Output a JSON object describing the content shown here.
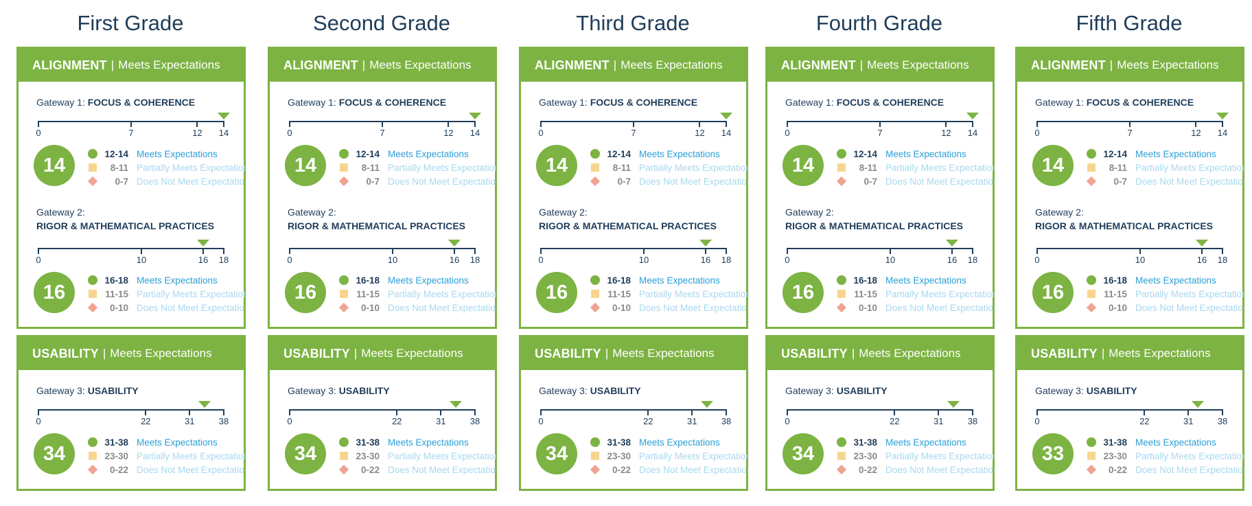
{
  "colors": {
    "accent": "#7cb342",
    "navy": "#1f3d5a",
    "meets_text": "#2a9fd6",
    "faded_text": "#a8d8ef",
    "partial_swatch": "#f7d58f",
    "notmeet_swatch": "#f0a392"
  },
  "legend_labels": {
    "meets": "Meets Expectations",
    "partial": "Partially Meets Expectations",
    "notmeet": "Does Not Meet Expectations"
  },
  "grades": [
    {
      "title": "First Grade",
      "alignment": {
        "title": "ALIGNMENT",
        "sep": "|",
        "rating": "Meets Expectations"
      },
      "gateway1": {
        "prefix": "Gateway 1:",
        "name": "FOCUS & COHERENCE",
        "max": 14,
        "ticks": [
          0,
          7,
          12,
          14
        ],
        "score": 14,
        "ranges": [
          "12-14",
          "8-11",
          "0-7"
        ]
      },
      "gateway2": {
        "prefix": "Gateway 2:",
        "name": "RIGOR & MATHEMATICAL PRACTICES",
        "max": 18,
        "ticks": [
          0,
          10,
          16,
          18
        ],
        "score": 16,
        "ranges": [
          "16-18",
          "11-15",
          "0-10"
        ]
      },
      "usability": {
        "title": "USABILITY",
        "sep": "|",
        "rating": "Meets Expectations"
      },
      "gateway3": {
        "prefix": "Gateway 3:",
        "name": "USABILITY",
        "max": 38,
        "ticks": [
          0,
          22,
          31,
          38
        ],
        "score": 34,
        "ranges": [
          "31-38",
          "23-30",
          "0-22"
        ]
      }
    },
    {
      "title": "Second Grade",
      "alignment": {
        "title": "ALIGNMENT",
        "sep": "|",
        "rating": "Meets Expectations"
      },
      "gateway1": {
        "prefix": "Gateway 1:",
        "name": "FOCUS & COHERENCE",
        "max": 14,
        "ticks": [
          0,
          7,
          12,
          14
        ],
        "score": 14,
        "ranges": [
          "12-14",
          "8-11",
          "0-7"
        ]
      },
      "gateway2": {
        "prefix": "Gateway 2:",
        "name": "RIGOR & MATHEMATICAL PRACTICES",
        "max": 18,
        "ticks": [
          0,
          10,
          16,
          18
        ],
        "score": 16,
        "ranges": [
          "16-18",
          "11-15",
          "0-10"
        ]
      },
      "usability": {
        "title": "USABILITY",
        "sep": "|",
        "rating": "Meets Expectations"
      },
      "gateway3": {
        "prefix": "Gateway 3:",
        "name": "USABILITY",
        "max": 38,
        "ticks": [
          0,
          22,
          31,
          38
        ],
        "score": 34,
        "ranges": [
          "31-38",
          "23-30",
          "0-22"
        ]
      }
    },
    {
      "title": "Third Grade",
      "alignment": {
        "title": "ALIGNMENT",
        "sep": "|",
        "rating": "Meets Expectations"
      },
      "gateway1": {
        "prefix": "Gateway 1:",
        "name": "FOCUS & COHERENCE",
        "max": 14,
        "ticks": [
          0,
          7,
          12,
          14
        ],
        "score": 14,
        "ranges": [
          "12-14",
          "8-11",
          "0-7"
        ]
      },
      "gateway2": {
        "prefix": "Gateway 2:",
        "name": "RIGOR & MATHEMATICAL PRACTICES",
        "max": 18,
        "ticks": [
          0,
          10,
          16,
          18
        ],
        "score": 16,
        "ranges": [
          "16-18",
          "11-15",
          "0-10"
        ]
      },
      "usability": {
        "title": "USABILITY",
        "sep": "|",
        "rating": "Meets Expectations"
      },
      "gateway3": {
        "prefix": "Gateway 3:",
        "name": "USABILITY",
        "max": 38,
        "ticks": [
          0,
          22,
          31,
          38
        ],
        "score": 34,
        "ranges": [
          "31-38",
          "23-30",
          "0-22"
        ]
      }
    },
    {
      "title": "Fourth Grade",
      "alignment": {
        "title": "ALIGNMENT",
        "sep": "|",
        "rating": "Meets Expectations"
      },
      "gateway1": {
        "prefix": "Gateway 1:",
        "name": "FOCUS & COHERENCE",
        "max": 14,
        "ticks": [
          0,
          7,
          12,
          14
        ],
        "score": 14,
        "ranges": [
          "12-14",
          "8-11",
          "0-7"
        ]
      },
      "gateway2": {
        "prefix": "Gateway 2:",
        "name": "RIGOR & MATHEMATICAL PRACTICES",
        "max": 18,
        "ticks": [
          0,
          10,
          16,
          18
        ],
        "score": 16,
        "ranges": [
          "16-18",
          "11-15",
          "0-10"
        ]
      },
      "usability": {
        "title": "USABILITY",
        "sep": "|",
        "rating": "Meets Expectations"
      },
      "gateway3": {
        "prefix": "Gateway 3:",
        "name": "USABILITY",
        "max": 38,
        "ticks": [
          0,
          22,
          31,
          38
        ],
        "score": 34,
        "ranges": [
          "31-38",
          "23-30",
          "0-22"
        ]
      }
    },
    {
      "title": "Fifth Grade",
      "alignment": {
        "title": "ALIGNMENT",
        "sep": "|",
        "rating": "Meets Expectations"
      },
      "gateway1": {
        "prefix": "Gateway 1:",
        "name": "FOCUS & COHERENCE",
        "max": 14,
        "ticks": [
          0,
          7,
          12,
          14
        ],
        "score": 14,
        "ranges": [
          "12-14",
          "8-11",
          "0-7"
        ]
      },
      "gateway2": {
        "prefix": "Gateway 2:",
        "name": "RIGOR & MATHEMATICAL PRACTICES",
        "max": 18,
        "ticks": [
          0,
          10,
          16,
          18
        ],
        "score": 16,
        "ranges": [
          "16-18",
          "11-15",
          "0-10"
        ]
      },
      "usability": {
        "title": "USABILITY",
        "sep": "|",
        "rating": "Meets Expectations"
      },
      "gateway3": {
        "prefix": "Gateway 3:",
        "name": "USABILITY",
        "max": 38,
        "ticks": [
          0,
          22,
          31,
          38
        ],
        "score": 33,
        "ranges": [
          "31-38",
          "23-30",
          "0-22"
        ]
      }
    }
  ]
}
